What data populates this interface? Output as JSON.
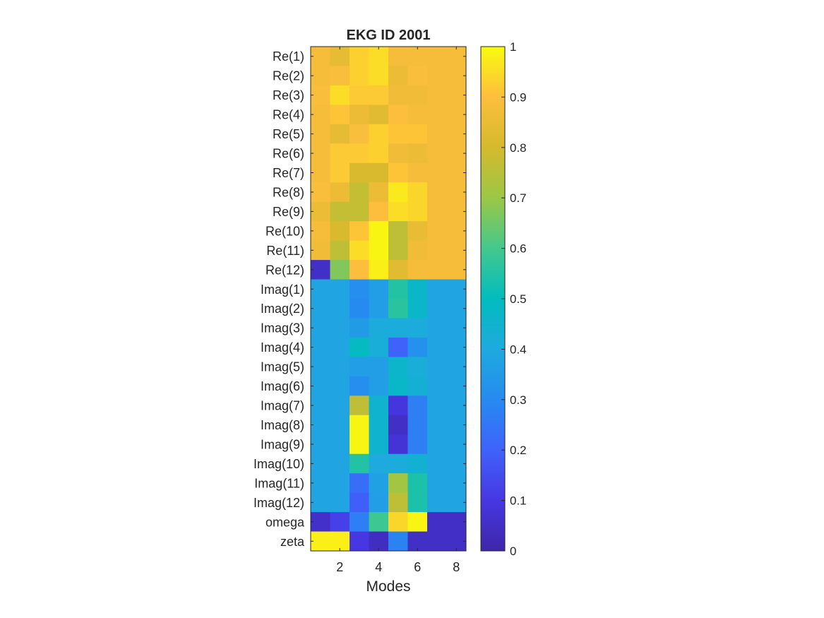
{
  "chart_data": {
    "type": "heatmap",
    "title": "EKG ID 2001",
    "xlabel": "Modes",
    "ylabel": "",
    "x_tick_labels": [
      "2",
      "4",
      "6",
      "8"
    ],
    "x_tick_values": [
      2,
      4,
      6,
      8
    ],
    "columns": [
      1,
      2,
      3,
      4,
      5,
      6,
      7,
      8
    ],
    "rows": [
      "Re(1)",
      "Re(2)",
      "Re(3)",
      "Re(4)",
      "Re(5)",
      "Re(6)",
      "Re(7)",
      "Re(8)",
      "Re(9)",
      "Re(10)",
      "Re(11)",
      "Re(12)",
      "Imag(1)",
      "Imag(2)",
      "Imag(3)",
      "Imag(4)",
      "Imag(5)",
      "Imag(6)",
      "Imag(7)",
      "Imag(8)",
      "Imag(9)",
      "Imag(10)",
      "Imag(11)",
      "Imag(12)",
      "omega",
      "zeta"
    ],
    "values": [
      [
        0.88,
        0.84,
        0.93,
        0.95,
        0.88,
        0.88,
        0.88,
        0.88
      ],
      [
        0.88,
        0.89,
        0.93,
        0.95,
        0.86,
        0.89,
        0.88,
        0.88
      ],
      [
        0.89,
        0.95,
        0.92,
        0.92,
        0.87,
        0.87,
        0.88,
        0.88
      ],
      [
        0.88,
        0.91,
        0.86,
        0.83,
        0.9,
        0.88,
        0.88,
        0.88
      ],
      [
        0.88,
        0.84,
        0.89,
        0.93,
        0.91,
        0.91,
        0.88,
        0.88
      ],
      [
        0.88,
        0.92,
        0.92,
        0.93,
        0.87,
        0.86,
        0.88,
        0.88
      ],
      [
        0.88,
        0.92,
        0.81,
        0.81,
        0.91,
        0.88,
        0.88,
        0.88
      ],
      [
        0.89,
        0.86,
        0.77,
        0.86,
        0.97,
        0.94,
        0.88,
        0.88
      ],
      [
        0.86,
        0.77,
        0.77,
        0.9,
        0.95,
        0.94,
        0.88,
        0.88
      ],
      [
        0.88,
        0.81,
        0.91,
        0.99,
        0.76,
        0.85,
        0.88,
        0.88
      ],
      [
        0.87,
        0.76,
        0.95,
        0.99,
        0.76,
        0.87,
        0.88,
        0.88
      ],
      [
        0.05,
        0.67,
        0.9,
        0.98,
        0.83,
        0.88,
        0.88,
        0.88
      ],
      [
        0.38,
        0.38,
        0.31,
        0.36,
        0.55,
        0.47,
        0.38,
        0.38
      ],
      [
        0.38,
        0.38,
        0.3,
        0.36,
        0.56,
        0.47,
        0.38,
        0.38
      ],
      [
        0.38,
        0.38,
        0.35,
        0.41,
        0.41,
        0.41,
        0.38,
        0.38
      ],
      [
        0.38,
        0.38,
        0.49,
        0.42,
        0.2,
        0.32,
        0.38,
        0.38
      ],
      [
        0.38,
        0.38,
        0.36,
        0.36,
        0.46,
        0.42,
        0.38,
        0.38
      ],
      [
        0.38,
        0.38,
        0.31,
        0.36,
        0.47,
        0.43,
        0.38,
        0.38
      ],
      [
        0.38,
        0.38,
        0.76,
        0.45,
        0.09,
        0.27,
        0.38,
        0.38
      ],
      [
        0.38,
        0.38,
        0.99,
        0.45,
        0.05,
        0.27,
        0.38,
        0.38
      ],
      [
        0.38,
        0.38,
        0.99,
        0.45,
        0.08,
        0.27,
        0.38,
        0.38
      ],
      [
        0.38,
        0.38,
        0.55,
        0.4,
        0.41,
        0.44,
        0.38,
        0.38
      ],
      [
        0.38,
        0.38,
        0.23,
        0.37,
        0.71,
        0.54,
        0.38,
        0.38
      ],
      [
        0.38,
        0.38,
        0.19,
        0.36,
        0.76,
        0.54,
        0.38,
        0.38
      ],
      [
        0.06,
        0.12,
        0.27,
        0.59,
        0.94,
        0.99,
        0.05,
        0.05
      ],
      [
        0.98,
        0.98,
        0.1,
        0.04,
        0.28,
        0.05,
        0.05,
        0.05
      ]
    ],
    "clim": [
      0,
      1
    ],
    "colormap": "parula",
    "colorbar": {
      "tick_values": [
        0,
        0.1,
        0.2,
        0.3,
        0.4,
        0.5,
        0.6,
        0.7,
        0.8,
        0.9,
        1
      ],
      "tick_labels": [
        "0",
        "0.1",
        "0.2",
        "0.3",
        "0.4",
        "0.5",
        "0.6",
        "0.7",
        "0.8",
        "0.9",
        "1"
      ],
      "placement": "right"
    },
    "grid": false
  }
}
